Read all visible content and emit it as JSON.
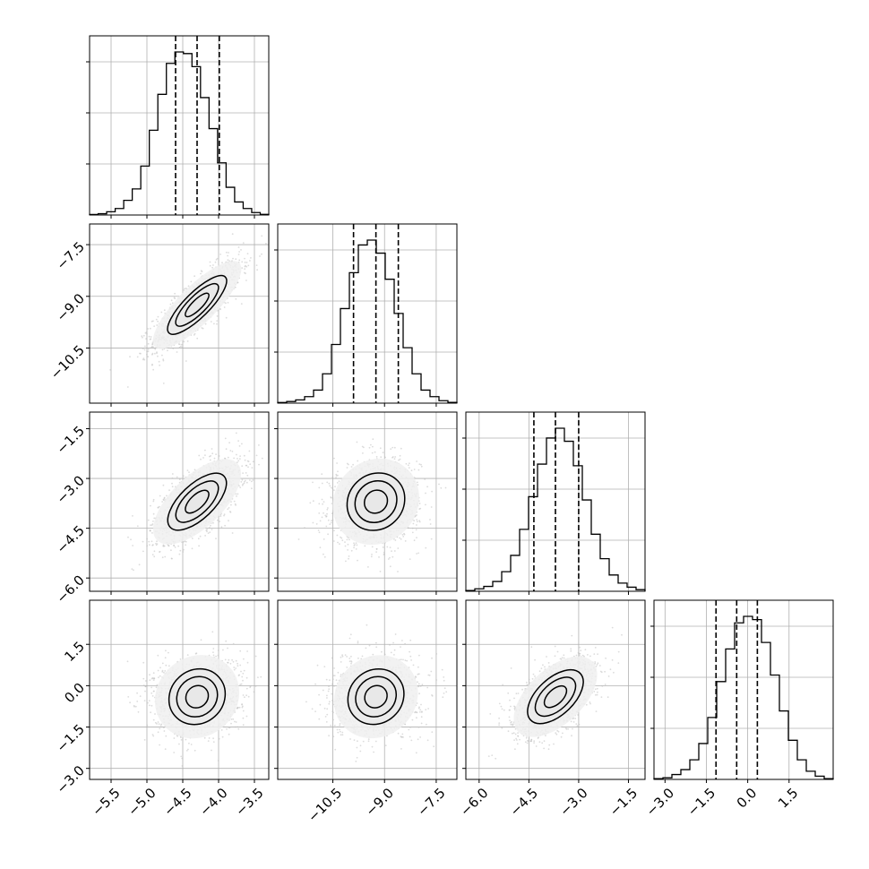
{
  "chart_data": {
    "type": "corner",
    "grid": true,
    "parameters": [
      {
        "lim": [
          -5.8,
          -3.3
        ],
        "ticks": [
          "−5.5",
          "−5.0",
          "−4.5",
          "−4.0",
          "−3.5"
        ],
        "tick_values": [
          -5.5,
          -5.0,
          -4.5,
          -4.0,
          -3.5
        ],
        "quantiles": [
          -4.6,
          -4.3,
          -3.99
        ]
      },
      {
        "lim": [
          -12.1,
          -6.9
        ],
        "ticks": [
          "−10.5",
          "−9.0",
          "−7.5"
        ],
        "tick_values": [
          -10.5,
          -9.0,
          -7.5
        ],
        "quantiles": [
          -9.9,
          -9.25,
          -8.6
        ]
      },
      {
        "lim": [
          -6.4,
          -1.0
        ],
        "ticks": [
          "−6.0",
          "−4.5",
          "−3.0",
          "−1.5"
        ],
        "tick_values": [
          -6.0,
          -4.5,
          -3.0,
          -1.5
        ],
        "quantiles": [
          -4.35,
          -3.7,
          -3.0
        ]
      },
      {
        "lim": [
          -3.4,
          3.1
        ],
        "ticks": [
          "−3.0",
          "−1.5",
          "0.0",
          "1.5"
        ],
        "tick_values": [
          -3.0,
          -1.5,
          0.0,
          1.5
        ],
        "quantiles": [
          -1.15,
          -0.4,
          0.35
        ]
      }
    ],
    "histograms": [
      [
        0.3,
        0.8,
        2,
        4,
        9,
        16,
        30,
        52,
        74,
        93,
        100,
        99,
        91,
        72,
        53,
        32,
        17,
        8,
        4,
        1.5,
        0.4
      ],
      [
        0.4,
        1,
        2,
        4,
        8,
        18,
        36,
        58,
        80,
        97,
        100,
        92,
        76,
        55,
        34,
        18,
        8,
        4,
        1.5,
        0.5
      ],
      [
        0.5,
        1.5,
        3,
        6,
        12,
        22,
        38,
        58,
        78,
        94,
        100,
        92,
        77,
        56,
        35,
        20,
        10,
        5,
        2.5,
        1
      ],
      [
        0.5,
        1,
        3,
        6,
        12,
        22,
        38,
        60,
        80,
        96,
        100,
        98,
        84,
        64,
        42,
        24,
        12,
        5,
        2,
        0.5
      ]
    ],
    "scatter": [
      {
        "row": 1,
        "col": 0,
        "center": [
          -4.3,
          -9.25
        ],
        "sigma": [
          0.3,
          0.62
        ],
        "corr": 0.82,
        "points": 1500
      },
      {
        "row": 2,
        "col": 0,
        "center": [
          -4.3,
          -3.7
        ],
        "sigma": [
          0.3,
          0.62
        ],
        "corr": 0.65,
        "points": 1500
      },
      {
        "row": 2,
        "col": 1,
        "center": [
          -9.25,
          -3.7
        ],
        "sigma": [
          0.62,
          0.62
        ],
        "corr": 0.1,
        "points": 1500
      },
      {
        "row": 3,
        "col": 0,
        "center": [
          -4.3,
          -0.4
        ],
        "sigma": [
          0.3,
          0.7
        ],
        "corr": 0.1,
        "points": 1500
      },
      {
        "row": 3,
        "col": 1,
        "center": [
          -9.25,
          -0.4
        ],
        "sigma": [
          0.62,
          0.7
        ],
        "corr": 0.1,
        "points": 1500
      },
      {
        "row": 3,
        "col": 2,
        "center": [
          -3.7,
          -0.4
        ],
        "sigma": [
          0.62,
          0.7
        ],
        "corr": 0.55,
        "points": 1500
      }
    ],
    "colors": {
      "line": "#000000",
      "grid": "#b0b0b0",
      "points": "#bfbfbf"
    }
  }
}
